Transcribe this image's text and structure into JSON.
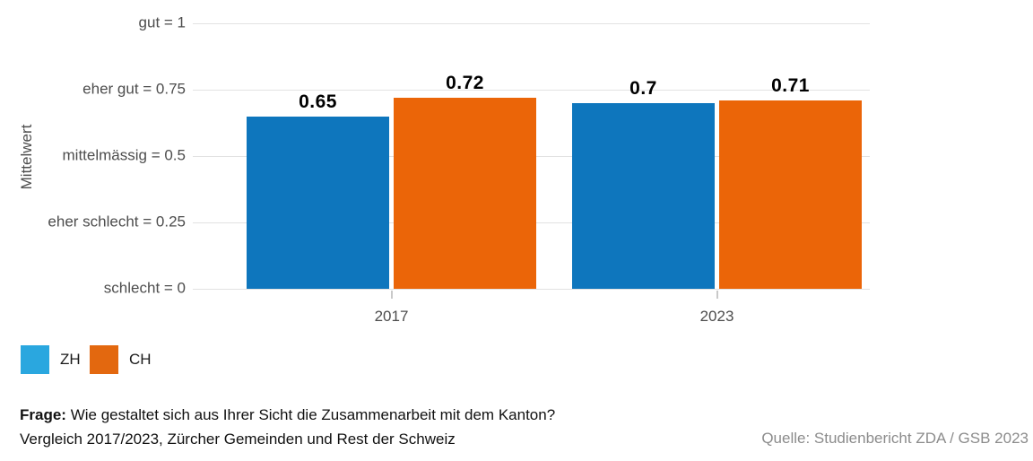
{
  "chart_data": {
    "type": "bar",
    "categories": [
      "2017",
      "2023"
    ],
    "series": [
      {
        "name": "ZH",
        "values": [
          0.65,
          0.7
        ],
        "bar_color": "#0e76bd",
        "legend_color": "#2aa7df"
      },
      {
        "name": "CH",
        "values": [
          0.72,
          0.71
        ],
        "bar_color": "#eb6508",
        "legend_color": "#e3680f"
      }
    ],
    "ylabel": "Mittelwert",
    "ylim": [
      0,
      1
    ],
    "yticks": [
      {
        "label": "gut = 1",
        "value": 1
      },
      {
        "label": "eher gut = 0.75",
        "value": 0.75
      },
      {
        "label": "mittelmässig = 0.5",
        "value": 0.5
      },
      {
        "label": "eher schlecht = 0.25",
        "value": 0.25
      },
      {
        "label": "schlecht = 0",
        "value": 0
      }
    ],
    "grid": true,
    "value_labels_shown": true,
    "legend_position": "bottom-left"
  },
  "footer": {
    "question_label": "Frage:",
    "question_text": " Wie gestaltet sich aus Ihrer Sicht die Zusammenarbeit mit dem Kanton?",
    "subtitle": "Vergleich 2017/2023, Zürcher Gemeinden und Rest der Schweiz",
    "source": "Quelle: Studienbericht ZDA / GSB 2023"
  },
  "colors": {
    "background": "#ffffff",
    "gridline": "#e2e2e2",
    "axis_text": "#4d4d4d",
    "value_label": "#000000",
    "source_text": "#8c8c8c"
  }
}
